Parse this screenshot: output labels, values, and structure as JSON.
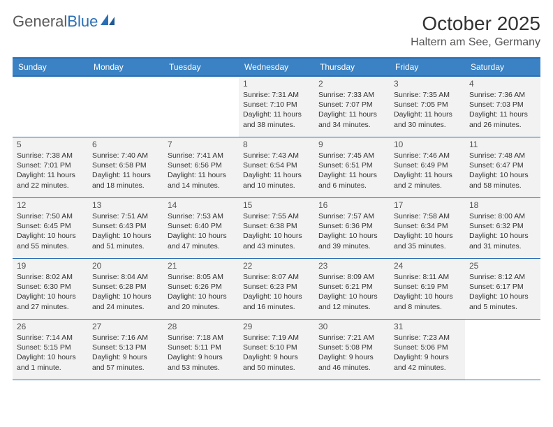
{
  "logo": {
    "text1": "General",
    "text2": "Blue"
  },
  "title": "October 2025",
  "location": "Haltern am See, Germany",
  "colors": {
    "header_bg": "#3b82c4",
    "header_border": "#2a6fb5",
    "shade_bg": "#f2f2f2",
    "text": "#333333",
    "logo_gray": "#5a5a5a",
    "logo_blue": "#2a6fb5"
  },
  "day_headers": [
    "Sunday",
    "Monday",
    "Tuesday",
    "Wednesday",
    "Thursday",
    "Friday",
    "Saturday"
  ],
  "weeks": [
    [
      {
        "n": "",
        "sr": "",
        "ss": "",
        "dl": ""
      },
      {
        "n": "",
        "sr": "",
        "ss": "",
        "dl": ""
      },
      {
        "n": "",
        "sr": "",
        "ss": "",
        "dl": ""
      },
      {
        "n": "1",
        "sr": "Sunrise: 7:31 AM",
        "ss": "Sunset: 7:10 PM",
        "dl": "Daylight: 11 hours and 38 minutes."
      },
      {
        "n": "2",
        "sr": "Sunrise: 7:33 AM",
        "ss": "Sunset: 7:07 PM",
        "dl": "Daylight: 11 hours and 34 minutes."
      },
      {
        "n": "3",
        "sr": "Sunrise: 7:35 AM",
        "ss": "Sunset: 7:05 PM",
        "dl": "Daylight: 11 hours and 30 minutes."
      },
      {
        "n": "4",
        "sr": "Sunrise: 7:36 AM",
        "ss": "Sunset: 7:03 PM",
        "dl": "Daylight: 11 hours and 26 minutes."
      }
    ],
    [
      {
        "n": "5",
        "sr": "Sunrise: 7:38 AM",
        "ss": "Sunset: 7:01 PM",
        "dl": "Daylight: 11 hours and 22 minutes."
      },
      {
        "n": "6",
        "sr": "Sunrise: 7:40 AM",
        "ss": "Sunset: 6:58 PM",
        "dl": "Daylight: 11 hours and 18 minutes."
      },
      {
        "n": "7",
        "sr": "Sunrise: 7:41 AM",
        "ss": "Sunset: 6:56 PM",
        "dl": "Daylight: 11 hours and 14 minutes."
      },
      {
        "n": "8",
        "sr": "Sunrise: 7:43 AM",
        "ss": "Sunset: 6:54 PM",
        "dl": "Daylight: 11 hours and 10 minutes."
      },
      {
        "n": "9",
        "sr": "Sunrise: 7:45 AM",
        "ss": "Sunset: 6:51 PM",
        "dl": "Daylight: 11 hours and 6 minutes."
      },
      {
        "n": "10",
        "sr": "Sunrise: 7:46 AM",
        "ss": "Sunset: 6:49 PM",
        "dl": "Daylight: 11 hours and 2 minutes."
      },
      {
        "n": "11",
        "sr": "Sunrise: 7:48 AM",
        "ss": "Sunset: 6:47 PM",
        "dl": "Daylight: 10 hours and 58 minutes."
      }
    ],
    [
      {
        "n": "12",
        "sr": "Sunrise: 7:50 AM",
        "ss": "Sunset: 6:45 PM",
        "dl": "Daylight: 10 hours and 55 minutes."
      },
      {
        "n": "13",
        "sr": "Sunrise: 7:51 AM",
        "ss": "Sunset: 6:43 PM",
        "dl": "Daylight: 10 hours and 51 minutes."
      },
      {
        "n": "14",
        "sr": "Sunrise: 7:53 AM",
        "ss": "Sunset: 6:40 PM",
        "dl": "Daylight: 10 hours and 47 minutes."
      },
      {
        "n": "15",
        "sr": "Sunrise: 7:55 AM",
        "ss": "Sunset: 6:38 PM",
        "dl": "Daylight: 10 hours and 43 minutes."
      },
      {
        "n": "16",
        "sr": "Sunrise: 7:57 AM",
        "ss": "Sunset: 6:36 PM",
        "dl": "Daylight: 10 hours and 39 minutes."
      },
      {
        "n": "17",
        "sr": "Sunrise: 7:58 AM",
        "ss": "Sunset: 6:34 PM",
        "dl": "Daylight: 10 hours and 35 minutes."
      },
      {
        "n": "18",
        "sr": "Sunrise: 8:00 AM",
        "ss": "Sunset: 6:32 PM",
        "dl": "Daylight: 10 hours and 31 minutes."
      }
    ],
    [
      {
        "n": "19",
        "sr": "Sunrise: 8:02 AM",
        "ss": "Sunset: 6:30 PM",
        "dl": "Daylight: 10 hours and 27 minutes."
      },
      {
        "n": "20",
        "sr": "Sunrise: 8:04 AM",
        "ss": "Sunset: 6:28 PM",
        "dl": "Daylight: 10 hours and 24 minutes."
      },
      {
        "n": "21",
        "sr": "Sunrise: 8:05 AM",
        "ss": "Sunset: 6:26 PM",
        "dl": "Daylight: 10 hours and 20 minutes."
      },
      {
        "n": "22",
        "sr": "Sunrise: 8:07 AM",
        "ss": "Sunset: 6:23 PM",
        "dl": "Daylight: 10 hours and 16 minutes."
      },
      {
        "n": "23",
        "sr": "Sunrise: 8:09 AM",
        "ss": "Sunset: 6:21 PM",
        "dl": "Daylight: 10 hours and 12 minutes."
      },
      {
        "n": "24",
        "sr": "Sunrise: 8:11 AM",
        "ss": "Sunset: 6:19 PM",
        "dl": "Daylight: 10 hours and 8 minutes."
      },
      {
        "n": "25",
        "sr": "Sunrise: 8:12 AM",
        "ss": "Sunset: 6:17 PM",
        "dl": "Daylight: 10 hours and 5 minutes."
      }
    ],
    [
      {
        "n": "26",
        "sr": "Sunrise: 7:14 AM",
        "ss": "Sunset: 5:15 PM",
        "dl": "Daylight: 10 hours and 1 minute."
      },
      {
        "n": "27",
        "sr": "Sunrise: 7:16 AM",
        "ss": "Sunset: 5:13 PM",
        "dl": "Daylight: 9 hours and 57 minutes."
      },
      {
        "n": "28",
        "sr": "Sunrise: 7:18 AM",
        "ss": "Sunset: 5:11 PM",
        "dl": "Daylight: 9 hours and 53 minutes."
      },
      {
        "n": "29",
        "sr": "Sunrise: 7:19 AM",
        "ss": "Sunset: 5:10 PM",
        "dl": "Daylight: 9 hours and 50 minutes."
      },
      {
        "n": "30",
        "sr": "Sunrise: 7:21 AM",
        "ss": "Sunset: 5:08 PM",
        "dl": "Daylight: 9 hours and 46 minutes."
      },
      {
        "n": "31",
        "sr": "Sunrise: 7:23 AM",
        "ss": "Sunset: 5:06 PM",
        "dl": "Daylight: 9 hours and 42 minutes."
      },
      {
        "n": "",
        "sr": "",
        "ss": "",
        "dl": ""
      }
    ]
  ]
}
